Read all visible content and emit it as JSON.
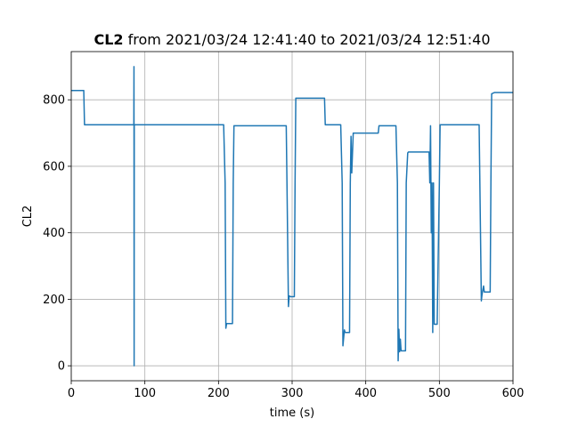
{
  "chart_data": {
    "type": "line",
    "title_bold": "CL2",
    "title_rest": " from 2021/03/24 12:41:40 to 2021/03/24 12:51:40",
    "xlabel": "time (s)",
    "ylabel": "CL2",
    "xlim": [
      0,
      600
    ],
    "ylim": [
      -45,
      945
    ],
    "xticks": [
      0,
      100,
      200,
      300,
      400,
      500,
      600
    ],
    "yticks": [
      0,
      200,
      400,
      600,
      800
    ],
    "grid": true,
    "color": "#1f77b4",
    "series": [
      {
        "x": [
          0,
          17,
          18,
          85,
          85.2,
          85.4,
          85.6,
          207,
          209,
          210,
          211,
          213,
          219,
          220,
          221,
          292,
          293,
          295,
          296,
          298,
          303,
          304,
          305,
          344,
          345,
          366,
          368,
          369,
          371,
          372,
          375,
          378,
          379,
          380,
          381,
          383,
          384,
          417,
          418,
          441,
          443,
          444,
          445,
          446,
          447,
          448,
          454,
          455,
          457,
          458,
          469,
          486,
          487,
          488,
          489,
          490,
          491,
          492,
          493,
          496,
          497,
          500,
          501,
          554,
          555,
          557,
          558,
          560,
          561,
          568,
          569,
          570,
          571,
          575,
          600
        ],
        "y": [
          828,
          828,
          725,
          725,
          900,
          0,
          725,
          725,
          550,
          113,
          127,
          127,
          127,
          550,
          722,
          722,
          550,
          178,
          210,
          208,
          208,
          550,
          805,
          805,
          725,
          725,
          550,
          60,
          108,
          100,
          100,
          100,
          550,
          690,
          580,
          700,
          700,
          700,
          722,
          722,
          550,
          15,
          110,
          42,
          80,
          45,
          45,
          550,
          640,
          643,
          643,
          643,
          550,
          722,
          400,
          550,
          100,
          550,
          125,
          125,
          125,
          550,
          725,
          725,
          550,
          195,
          215,
          240,
          222,
          222,
          222,
          550,
          818,
          822,
          822
        ]
      }
    ]
  }
}
